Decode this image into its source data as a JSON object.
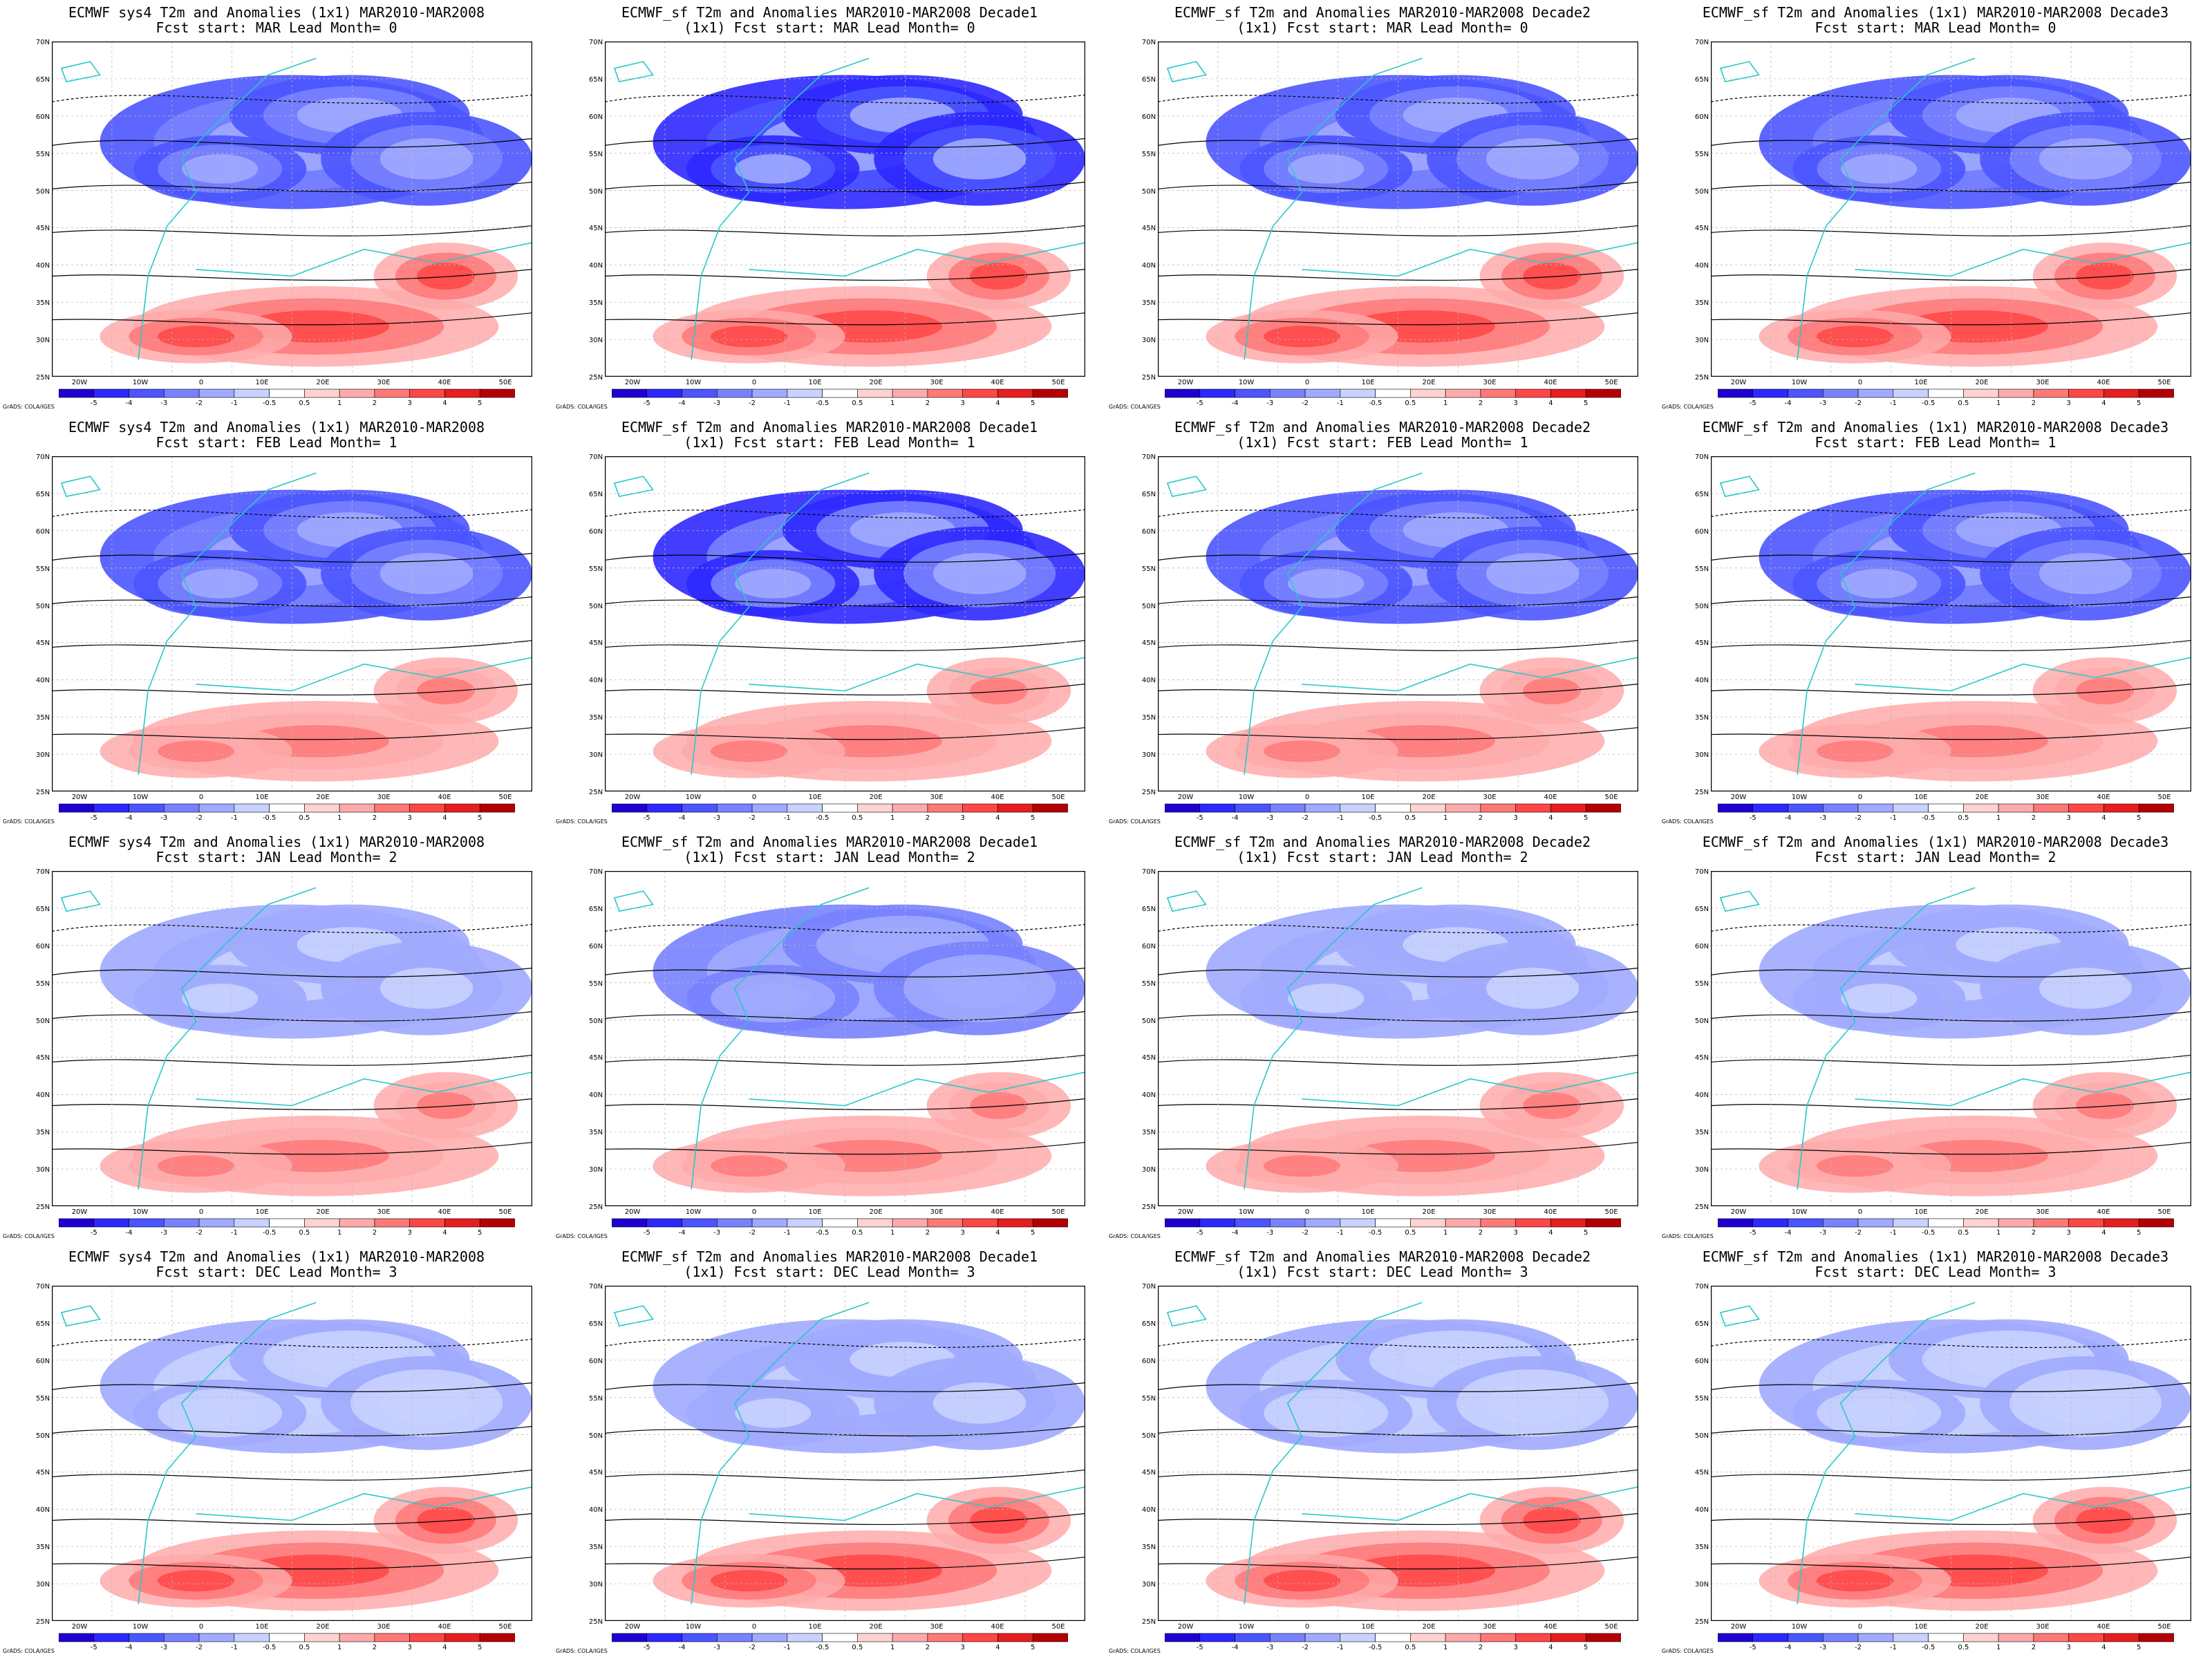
{
  "panels": [
    {
      "line1": "ECMWF sys4 T2m and Anomalies (1x1) MAR2010-MAR2008",
      "line2": "Fcst start: MAR  Lead Month= 0"
    },
    {
      "line1": "ECMWF_sf T2m and Anomalies MAR2010-MAR2008 Decade1",
      "line2": "(1x1) Fcst start: MAR  Lead Month= 0"
    },
    {
      "line1": "ECMWF_sf T2m and Anomalies MAR2010-MAR2008 Decade2",
      "line2": "(1x1) Fcst start: MAR  Lead Month= 0"
    },
    {
      "line1": "ECMWF_sf T2m and Anomalies (1x1) MAR2010-MAR2008 Decade3",
      "line2": "Fcst start: MAR  Lead Month= 0"
    },
    {
      "line1": "ECMWF sys4 T2m and Anomalies (1x1) MAR2010-MAR2008",
      "line2": "Fcst start: FEB  Lead Month= 1"
    },
    {
      "line1": "ECMWF_sf T2m and Anomalies MAR2010-MAR2008 Decade1",
      "line2": "(1x1) Fcst start: FEB  Lead Month= 1"
    },
    {
      "line1": "ECMWF_sf T2m and Anomalies MAR2010-MAR2008 Decade2",
      "line2": "(1x1) Fcst start: FEB  Lead Month= 1"
    },
    {
      "line1": "ECMWF_sf T2m and Anomalies (1x1) MAR2010-MAR2008 Decade3",
      "line2": "Fcst start: FEB  Lead Month= 1"
    },
    {
      "line1": "ECMWF sys4 T2m and Anomalies (1x1) MAR2010-MAR2008",
      "line2": "Fcst start: JAN  Lead Month= 2"
    },
    {
      "line1": "ECMWF_sf T2m and Anomalies MAR2010-MAR2008 Decade1",
      "line2": "(1x1) Fcst start: JAN  Lead Month= 2"
    },
    {
      "line1": "ECMWF_sf T2m and Anomalies MAR2010-MAR2008 Decade2",
      "line2": "(1x1) Fcst start: JAN  Lead Month= 2"
    },
    {
      "line1": "ECMWF_sf T2m and Anomalies (1x1) MAR2010-MAR2008 Decade3",
      "line2": "Fcst start: JAN  Lead Month= 2"
    },
    {
      "line1": "ECMWF sys4 T2m and Anomalies (1x1) MAR2010-MAR2008",
      "line2": "Fcst start: DEC  Lead Month= 3"
    },
    {
      "line1": "ECMWF_sf T2m and Anomalies MAR2010-MAR2008 Decade1",
      "line2": "(1x1) Fcst start: DEC  Lead Month= 3"
    },
    {
      "line1": "ECMWF_sf T2m and Anomalies MAR2010-MAR2008 Decade2",
      "line2": "(1x1) Fcst start: DEC  Lead Month= 3"
    },
    {
      "line1": "ECMWF_sf T2m and Anomalies (1x1) MAR2010-MAR2008 Decade3",
      "line2": "Fcst start: DEC  Lead Month= 3"
    }
  ],
  "lat_labels": [
    "70N",
    "65N",
    "60N",
    "55N",
    "50N",
    "45N",
    "40N",
    "35N",
    "30N",
    "25N"
  ],
  "lon_labels": [
    "20W",
    "10W",
    "0",
    "10E",
    "20E",
    "30E",
    "40E",
    "50E"
  ],
  "colorbar_labels": [
    "-5",
    "-4",
    "-3",
    "-2",
    "-1",
    "-0.5",
    "0.5",
    "1",
    "2",
    "3",
    "4",
    "5"
  ],
  "colorbar_colors": [
    "#1e00d2",
    "#2d28ff",
    "#4b55ff",
    "#7882ff",
    "#a0aaff",
    "#c8d2ff",
    "#ffffff",
    "#ffd2d2",
    "#ffaaaa",
    "#ff7878",
    "#ff4646",
    "#e61e1e",
    "#b40000"
  ],
  "grads_credit": "GrADS: COLA/IGES",
  "colors": {
    "coast": "#28c8c8",
    "contour": "#000000"
  }
}
